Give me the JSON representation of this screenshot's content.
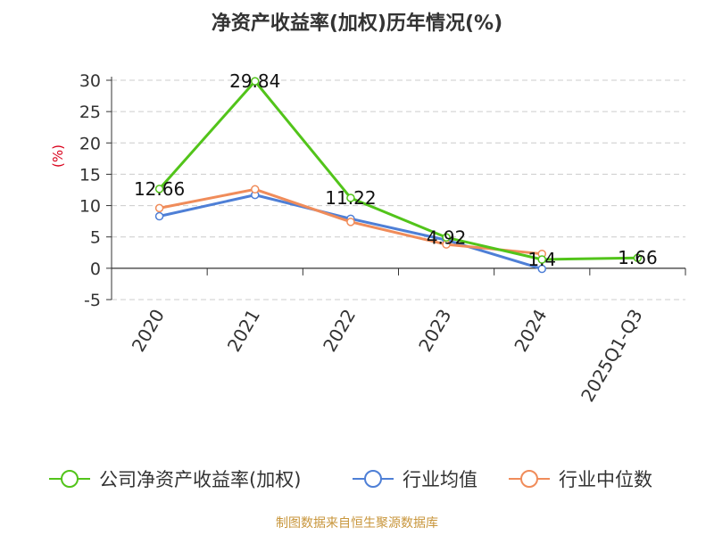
{
  "chart_data": {
    "type": "line",
    "title": "净资产收益率(加权)历年情况(%)",
    "ylabel": "(%)",
    "xlabel": "",
    "categories": [
      "2020",
      "2021",
      "2022",
      "2023",
      "2024",
      "2025Q1-Q3"
    ],
    "ylim": [
      -5,
      30
    ],
    "yticks": [
      30,
      25,
      20,
      15,
      10,
      5,
      0,
      -5
    ],
    "grid": true,
    "legend_position": "bottom",
    "series": [
      {
        "name": "公司净资产收益率(加权)",
        "color": "#52c41a",
        "values": [
          12.66,
          29.84,
          11.22,
          4.92,
          1.4,
          1.66
        ],
        "labels": [
          "12.66",
          "29.84",
          "11.22",
          "4.92",
          "1.4",
          "1.66"
        ]
      },
      {
        "name": "行业均值",
        "color": "#4e7fd6",
        "values": [
          8.3,
          11.7,
          7.9,
          4.5,
          -0.1,
          null
        ]
      },
      {
        "name": "行业中位数",
        "color": "#f08c5a",
        "values": [
          9.6,
          12.6,
          7.4,
          3.8,
          2.3,
          null
        ]
      }
    ]
  },
  "source": "制图数据来自恒生聚源数据库",
  "colors": {
    "title": "#333333",
    "axis": "#333333",
    "grid": "#cccccc",
    "ylabel": "#d9001b",
    "source": "#c8963c"
  }
}
